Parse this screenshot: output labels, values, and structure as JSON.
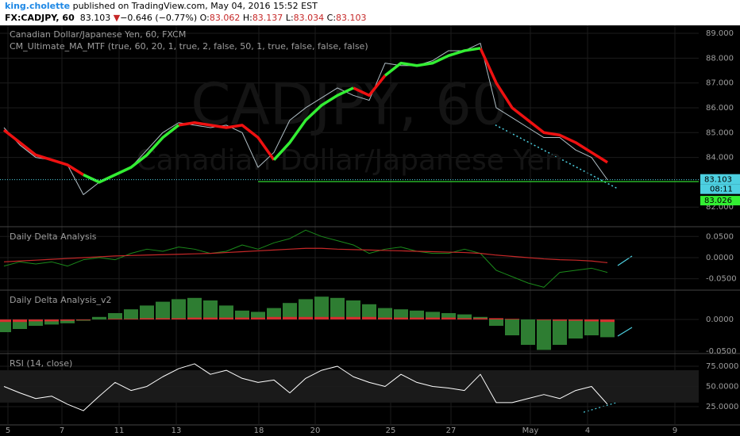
{
  "header": {
    "author": "king.cholette",
    "published": "published on TradingView.com, May 04, 2016 15:52 EST",
    "symbol": "FX:CADJPY, 60",
    "last": "83.103",
    "arrow": "▼",
    "change": "−0.646 (−0.77%)",
    "o_label": "O:",
    "open": "83.062",
    "h_label": "H:",
    "high": "83.137",
    "l_label": "L:",
    "low": "83.034",
    "c_label": "C:",
    "close": "83.103"
  },
  "chart_data": [
    {
      "type": "line",
      "title": "Canadian Dollar/Japanese Yen, 60, FXCM",
      "subtitle": "CM_Ultimate_MA_MTF (true, 60, 20, 1, true, 2, false, 50, 1, true, false, false, false)",
      "watermark": "CADJPY, 60",
      "watermark2": "Canadian Dollar/Japanese Yen",
      "x": [
        0,
        4,
        8,
        12,
        16,
        20,
        24,
        28,
        32,
        36,
        40,
        44,
        48,
        52,
        56,
        60,
        64,
        68,
        72,
        76,
        80,
        84,
        88,
        92,
        96,
        100,
        104,
        108,
        112,
        116,
        120,
        124,
        128,
        132,
        136,
        140,
        144,
        148,
        152
      ],
      "xlim": [
        -1,
        175
      ],
      "xticks": [
        {
          "value": 1,
          "label": "5"
        },
        {
          "value": 14.6,
          "label": "7"
        },
        {
          "value": 29,
          "label": "11"
        },
        {
          "value": 43.4,
          "label": "13"
        },
        {
          "value": 64.2,
          "label": "18"
        },
        {
          "value": 78.4,
          "label": "20"
        },
        {
          "value": 97.4,
          "label": "25"
        },
        {
          "value": 112.6,
          "label": "27"
        },
        {
          "value": 132.6,
          "label": "May"
        },
        {
          "value": 147,
          "label": "4"
        },
        {
          "value": 169,
          "label": "9"
        }
      ],
      "ylim": [
        81.24,
        89.32
      ],
      "yticks": [
        {
          "value": 82,
          "label": "82.000"
        },
        {
          "value": 84,
          "label": "84.000"
        },
        {
          "value": 85,
          "label": "85.000"
        },
        {
          "value": 86,
          "label": "86.000"
        },
        {
          "value": 87,
          "label": "87.000"
        },
        {
          "value": 88,
          "label": "88.000"
        },
        {
          "value": 89,
          "label": "89.000"
        }
      ],
      "series": [
        {
          "color": "#b0bec5",
          "width": 1,
          "values": [
            85.2,
            84.5,
            84.0,
            83.9,
            83.7,
            82.5,
            83.0,
            83.3,
            83.6,
            84.3,
            85.0,
            85.4,
            85.3,
            85.2,
            85.3,
            85.0,
            83.6,
            84.2,
            85.5,
            86.0,
            86.4,
            86.8,
            86.5,
            86.3,
            87.8,
            87.7,
            87.7,
            87.9,
            88.3,
            88.3,
            88.6,
            86.0,
            85.6,
            85.2,
            84.8,
            84.8,
            84.3,
            84.0,
            83.1
          ]
        },
        {
          "color": "#ee1111",
          "width": 3.5,
          "values": [
            85.1,
            84.6,
            84.1,
            83.9,
            83.7,
            83.3,
            null,
            null,
            null,
            null,
            null,
            85.3,
            85.4,
            85.3,
            85.2,
            85.3,
            84.8,
            83.9,
            null,
            null,
            null,
            null,
            86.8,
            86.5,
            87.3,
            null,
            null,
            null,
            null,
            null,
            88.4,
            87.0,
            86.0,
            85.5,
            85.0,
            84.9,
            84.6,
            84.2,
            83.8
          ]
        },
        {
          "color": "#33ee33",
          "width": 3.5,
          "values": [
            null,
            null,
            null,
            null,
            null,
            83.3,
            83.0,
            83.3,
            83.6,
            84.1,
            84.8,
            85.3,
            null,
            null,
            null,
            null,
            null,
            83.9,
            84.6,
            85.5,
            86.1,
            86.5,
            86.8,
            null,
            87.3,
            87.8,
            87.7,
            87.8,
            88.1,
            88.3,
            88.4,
            null,
            null,
            null,
            null,
            null,
            null,
            null,
            null
          ]
        }
      ],
      "last_price": {
        "value": 83.103,
        "label": "83.103"
      },
      "countdown": "08:11",
      "support": {
        "value": 83.026,
        "label": "83.026",
        "from": 64
      }
    },
    {
      "type": "line",
      "title": "Daily Delta Analysis",
      "ylim": [
        -0.075,
        0.0712
      ],
      "yticks": [
        {
          "value": 0.05,
          "label": "0.0500"
        },
        {
          "value": 0,
          "label": "0.0000"
        },
        {
          "value": -0.05,
          "label": "-0.0500"
        }
      ],
      "series": [
        {
          "color": "#1b8a1b",
          "width": 1,
          "values": [
            -0.02,
            -0.01,
            -0.015,
            -0.01,
            -0.02,
            -0.005,
            0.0,
            -0.005,
            0.01,
            0.02,
            0.015,
            0.025,
            0.02,
            0.01,
            0.015,
            0.03,
            0.02,
            0.035,
            0.045,
            0.065,
            0.05,
            0.04,
            0.03,
            0.01,
            0.02,
            0.025,
            0.015,
            0.01,
            0.01,
            0.02,
            0.01,
            -0.03,
            -0.045,
            -0.06,
            -0.07,
            -0.035,
            -0.03,
            -0.025,
            -0.035
          ]
        },
        {
          "color": "#c62828",
          "width": 1.2,
          "values": [
            -0.01,
            -0.008,
            -0.006,
            -0.004,
            -0.002,
            0,
            0.002,
            0.004,
            0.005,
            0.006,
            0.007,
            0.008,
            0.009,
            0.01,
            0.012,
            0.014,
            0.016,
            0.018,
            0.02,
            0.022,
            0.022,
            0.02,
            0.019,
            0.018,
            0.017,
            0.016,
            0.015,
            0.014,
            0.013,
            0.012,
            0.01,
            0.006,
            0.003,
            0,
            -0.003,
            -0.005,
            -0.006,
            -0.008,
            -0.012
          ]
        }
      ]
    },
    {
      "type": "bar",
      "title": "Daily Delta Analysis_v2",
      "ylim": [
        -0.0525,
        0.045
      ],
      "yticks": [
        {
          "value": 0,
          "label": "0.0000"
        },
        {
          "value": -0.05,
          "label": "-0.0500"
        }
      ],
      "series": [
        {
          "color": "#2e7d32",
          "values": [
            -0.02,
            -0.015,
            -0.01,
            -0.008,
            -0.006,
            -0.002,
            0.004,
            0.01,
            0.016,
            0.022,
            0.028,
            0.032,
            0.034,
            0.03,
            0.022,
            0.014,
            0.012,
            0.018,
            0.026,
            0.032,
            0.036,
            0.034,
            0.03,
            0.024,
            0.018,
            0.016,
            0.014,
            0.012,
            0.01,
            0.008,
            0.004,
            -0.01,
            -0.025,
            -0.04,
            -0.048,
            -0.04,
            -0.03,
            -0.025,
            -0.028
          ]
        },
        {
          "color": "#d32f2f",
          "values": [
            -0.004,
            -0.004,
            -0.003,
            -0.003,
            -0.002,
            -0.001,
            0,
            0.001,
            0.001,
            0.002,
            0.002,
            0.002,
            0.003,
            0.003,
            0.003,
            0.003,
            0.003,
            0.004,
            0.004,
            0.004,
            0.004,
            0.004,
            0.004,
            0.004,
            0.003,
            0.003,
            0.003,
            0.003,
            0.003,
            0.002,
            0.002,
            0.002,
            0.001,
            0,
            -0.001,
            -0.002,
            -0.002,
            -0.003,
            -0.004
          ]
        }
      ]
    },
    {
      "type": "line",
      "title": "RSI (14, close)",
      "ylim": [
        3.4,
        89.7
      ],
      "yticks": [
        {
          "value": 25,
          "label": "25.0000"
        },
        {
          "value": 50,
          "label": "50.0000"
        },
        {
          "value": 75,
          "label": "75.0000"
        }
      ],
      "band": [
        30,
        70
      ],
      "series": [
        {
          "color": "#ffffff",
          "width": 1,
          "values": [
            50,
            42,
            35,
            38,
            28,
            20,
            38,
            55,
            45,
            50,
            62,
            72,
            78,
            65,
            70,
            60,
            55,
            58,
            42,
            60,
            70,
            75,
            62,
            55,
            50,
            65,
            55,
            50,
            48,
            45,
            65,
            30,
            30,
            35,
            40,
            35,
            45,
            50,
            28
          ]
        }
      ]
    }
  ]
}
